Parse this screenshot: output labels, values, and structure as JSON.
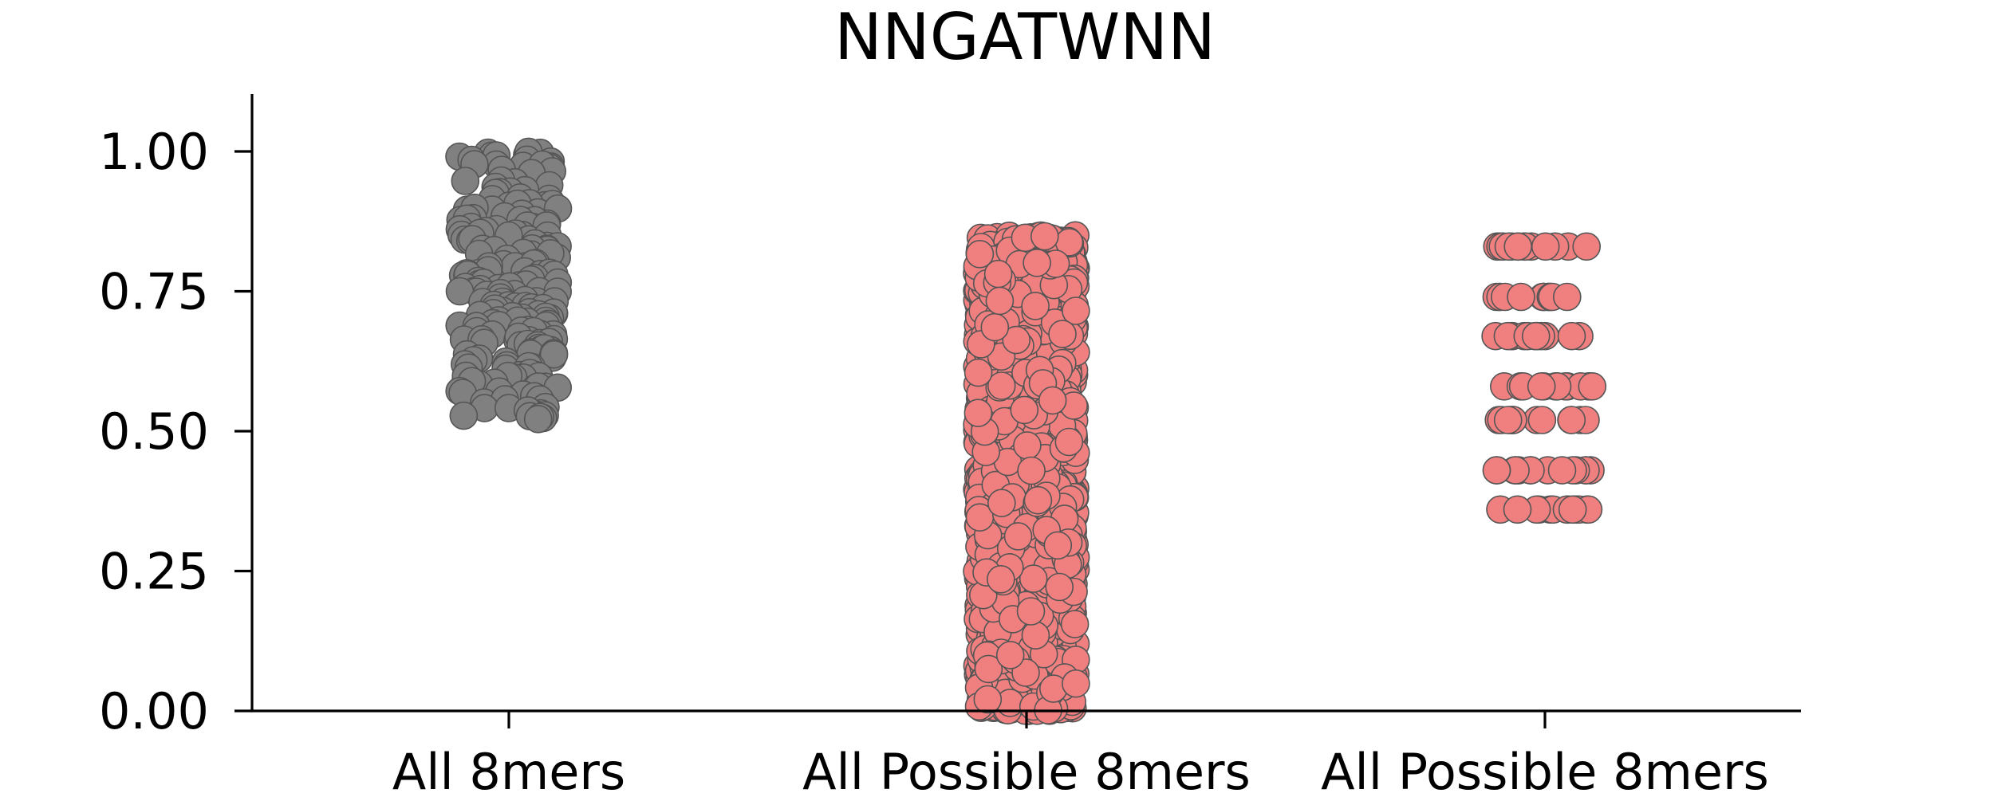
{
  "chart_data": {
    "type": "scatter",
    "subtype": "strip",
    "title": "NNGATWNN",
    "xlabel": "",
    "ylabel": "",
    "categories": [
      "All 8mers",
      "All Possible 8mers",
      "All Possible 8mers"
    ],
    "ylim": [
      0,
      1.1
    ],
    "yticks": [
      0.0,
      0.25,
      0.5,
      0.75,
      1.0
    ],
    "ytick_labels": [
      "0.00",
      "0.25",
      "0.50",
      "0.75",
      "1.00"
    ],
    "grid": false,
    "legend": "none",
    "series": [
      {
        "category": "All 8mers",
        "color": "#808080",
        "values": [
          1.0,
          1.0,
          1.0,
          0.99,
          0.98,
          0.98,
          0.97,
          0.95,
          0.94,
          0.93,
          0.92,
          0.91,
          0.91,
          0.9,
          0.9,
          0.89,
          0.88,
          0.88,
          0.87,
          0.87,
          0.86,
          0.86,
          0.85,
          0.85,
          0.84,
          0.83,
          0.83,
          0.82,
          0.82,
          0.81,
          0.8,
          0.8,
          0.79,
          0.79,
          0.78,
          0.78,
          0.77,
          0.77,
          0.76,
          0.76,
          0.75,
          0.75,
          0.74,
          0.74,
          0.73,
          0.73,
          0.72,
          0.72,
          0.71,
          0.71,
          0.7,
          0.7,
          0.69,
          0.69,
          0.68,
          0.68,
          0.67,
          0.67,
          0.66,
          0.66,
          0.65,
          0.65,
          0.64,
          0.64,
          0.63,
          0.62,
          0.62,
          0.61,
          0.6,
          0.6,
          0.59,
          0.58,
          0.58,
          0.57,
          0.56,
          0.55,
          0.54,
          0.53,
          0.53
        ]
      },
      {
        "category": "All Possible 8mers",
        "color": "#f08080",
        "distribution": "dense, continuous",
        "ylim": [
          0.0,
          0.85
        ]
      },
      {
        "category": "All Possible 8mers",
        "color": "#f08080",
        "distribution": "discrete levels",
        "levels": [
          0.83,
          0.74,
          0.67,
          0.58,
          0.52,
          0.43,
          0.36
        ]
      }
    ]
  }
}
